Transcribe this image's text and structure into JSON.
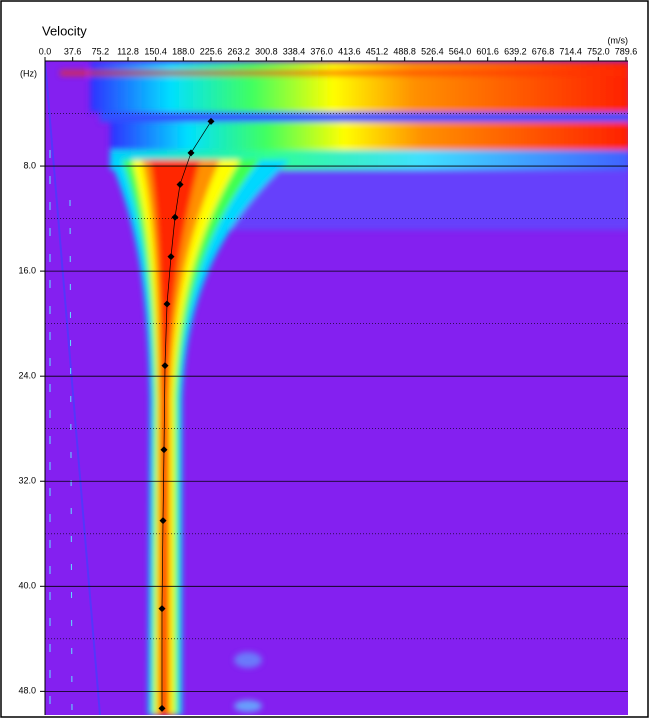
{
  "chart_data": {
    "type": "scatter",
    "title": "Velocity",
    "x_label": "(m/s)",
    "y_label": "(Hz)",
    "x": [
      225.6,
      198.4,
      183.5,
      176.7,
      171.2,
      165.8,
      163.1,
      161.7,
      160.4,
      159.0,
      159.0
    ],
    "values": [
      4.6,
      7.0,
      9.4,
      11.9,
      14.9,
      18.5,
      23.2,
      29.6,
      35.0,
      41.7,
      49.3
    ],
    "color": "#000000",
    "line": true,
    "xlim": [
      0,
      789.6
    ],
    "xticks": [
      {
        "value": 0,
        "label": "0.0"
      },
      37.6,
      75.2,
      112.8,
      150.4,
      {
        "value": 188,
        "label": "188.0"
      },
      225.6,
      263.2,
      300.8,
      338.4,
      {
        "value": 376,
        "label": "376.0"
      },
      413.6,
      451.2,
      488.8,
      526.4,
      {
        "value": 564,
        "label": "564.0"
      },
      601.6,
      639.2,
      676.8,
      714.4,
      {
        "value": 752,
        "label": "752.0"
      },
      789.6
    ],
    "ylim": [
      0,
      49.8
    ],
    "yticks": [
      {
        "value": 8,
        "label": "8.0"
      },
      {
        "value": 16,
        "label": "16.0"
      },
      {
        "value": 24,
        "label": "24.0"
      },
      {
        "value": 32,
        "label": "32.0"
      },
      {
        "value": 40,
        "label": "40.0"
      },
      {
        "value": 48,
        "label": "48.0"
      }
    ],
    "yminorgrid": [
      4,
      12,
      20,
      28,
      36,
      44
    ],
    "grid": true
  }
}
